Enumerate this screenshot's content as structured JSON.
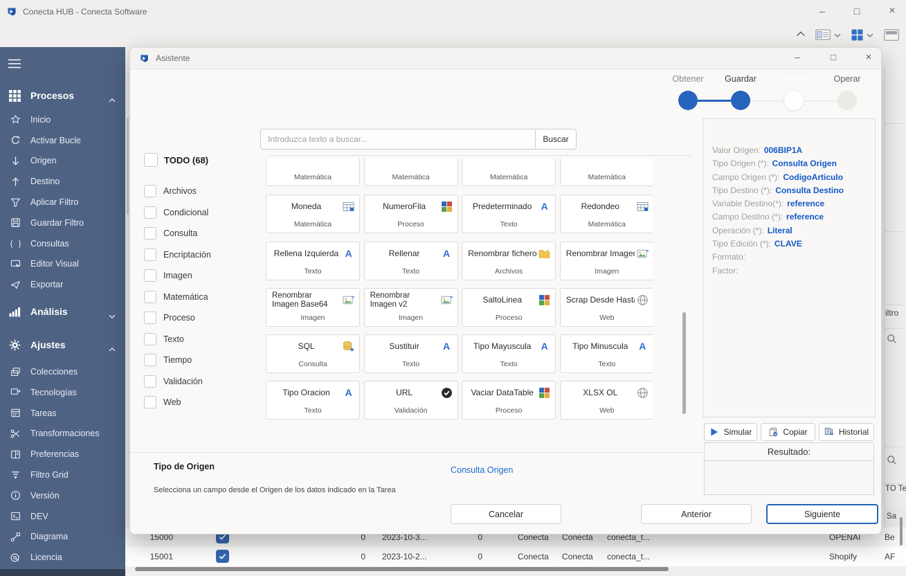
{
  "window": {
    "title": "Conecta HUB - Conecta Software",
    "controls": {
      "minimize": "–",
      "maximize": "□",
      "close": "×"
    }
  },
  "sidebar": {
    "sections": [
      {
        "label": "Procesos",
        "icon": "apps",
        "expanded": true,
        "items": [
          {
            "label": "Inicio",
            "icon": "star"
          },
          {
            "label": "Activar Bucle",
            "icon": "loop"
          },
          {
            "label": "Origen",
            "icon": "arrow-down"
          },
          {
            "label": "Destino",
            "icon": "arrow-up"
          },
          {
            "label": "Aplicar Filtro",
            "icon": "funnel"
          },
          {
            "label": "Guardar Filtro",
            "icon": "save"
          },
          {
            "label": "Consultas",
            "icon": "braces"
          },
          {
            "label": "Editor Visual",
            "icon": "visual-editor"
          },
          {
            "label": "Exportar",
            "icon": "export"
          }
        ]
      },
      {
        "label": "Análisis",
        "icon": "chart",
        "expanded": false,
        "items": []
      },
      {
        "label": "Ajustes",
        "icon": "gear",
        "expanded": true,
        "items": [
          {
            "label": "Colecciones",
            "icon": "collections"
          },
          {
            "label": "Tecnologías",
            "icon": "technologies"
          },
          {
            "label": "Tareas",
            "icon": "tasks"
          },
          {
            "label": "Transformaciones",
            "icon": "transformations"
          },
          {
            "label": "Preferencias",
            "icon": "preferences"
          },
          {
            "label": "Filtro Grid",
            "icon": "filter-grid"
          },
          {
            "label": "Versión",
            "icon": "info"
          },
          {
            "label": "DEV",
            "icon": "dev"
          },
          {
            "label": "Diagrama",
            "icon": "diagram"
          },
          {
            "label": "Licencia",
            "icon": "license"
          }
        ]
      }
    ]
  },
  "modal": {
    "title": "Asistente",
    "controls": {
      "minimize": "–",
      "maximize": "□",
      "close": "×"
    },
    "stepper": {
      "steps": [
        {
          "label": "Obtener",
          "status": "completed"
        },
        {
          "label": "Guardar",
          "status": "current"
        },
        {
          "label": "Operar",
          "status": "active"
        },
        {
          "label": "Operar",
          "status": "pending"
        }
      ]
    },
    "search": {
      "placeholder": "Introduzca texto a buscar...",
      "button_label": "Buscar"
    },
    "filters": {
      "all_label": "TODO (68)",
      "categories": [
        "Archivos",
        "Condicional",
        "Consulta",
        "Encriptación",
        "Imagen",
        "Matemática",
        "Proceso",
        "Texto",
        "Tiempo",
        "Validación",
        "Web"
      ]
    },
    "partial_row_categories": [
      "Matemática",
      "Matemática",
      "Matemática",
      "Matemática"
    ],
    "cards": [
      {
        "title": "Moneda",
        "category": "Matemática",
        "icon": "table"
      },
      {
        "title": "NumeroFila",
        "category": "Proceso",
        "icon": "grid"
      },
      {
        "title": "Predeterminado",
        "category": "Texto",
        "icon": "letter-a"
      },
      {
        "title": "Redondeo",
        "category": "Matemática",
        "icon": "table"
      },
      {
        "title": "Rellena Izquierda",
        "category": "Texto",
        "icon": "letter-a"
      },
      {
        "title": "Rellenar",
        "category": "Texto",
        "icon": "letter-a"
      },
      {
        "title": "Renombrar fichero",
        "category": "Archivos",
        "icon": "folder"
      },
      {
        "title": "Renombrar Imagen",
        "category": "Imagen",
        "icon": "image"
      },
      {
        "title": "Renombrar Imagen Base64",
        "category": "Imagen",
        "icon": "image"
      },
      {
        "title": "Renombrar Imagen v2",
        "category": "Imagen",
        "icon": "image"
      },
      {
        "title": "SaltoLinea",
        "category": "Proceso",
        "icon": "grid"
      },
      {
        "title": "Scrap Desde Hasta",
        "category": "Web",
        "icon": "globe"
      },
      {
        "title": "SQL",
        "category": "Consulta",
        "icon": "database"
      },
      {
        "title": "Sustituir",
        "category": "Texto",
        "icon": "letter-a"
      },
      {
        "title": "Tipo Mayuscula",
        "category": "Texto",
        "icon": "letter-a"
      },
      {
        "title": "Tipo Minuscula",
        "category": "Texto",
        "icon": "letter-a"
      },
      {
        "title": "Tipo Oracion",
        "category": "Texto",
        "icon": "letter-a"
      },
      {
        "title": "URL",
        "category": "Validación",
        "icon": "check-circle"
      },
      {
        "title": "Vaciar DataTable",
        "category": "Proceso",
        "icon": "grid"
      },
      {
        "title": "XLSX OL",
        "category": "Web",
        "icon": "globe"
      }
    ],
    "properties": [
      {
        "label": "Valor Origen:",
        "value": "006BIP1A"
      },
      {
        "label": "Tipo Origen (*):",
        "value": "Consulta Origen"
      },
      {
        "label": "Campo Origen (*):",
        "value": "CodigoArticulo"
      },
      {
        "label": "Tipo Destino (*):",
        "value": "Consulta Destino"
      },
      {
        "label": "Variable Destino(*):",
        "value": "reference"
      },
      {
        "label": "Campo Destino (*):",
        "value": "reference"
      },
      {
        "label": "Operación (*):",
        "value": "Literal"
      },
      {
        "label": "Tipo Edición (*):",
        "value": "CLAVE"
      },
      {
        "label": "Formato:",
        "value": ""
      },
      {
        "label": "Factor:",
        "value": ""
      }
    ],
    "actions": {
      "simulate_label": "Simular",
      "copy_label": "Copiar",
      "history_label": "Historial"
    },
    "result_label": "Resultado:",
    "footer": {
      "origin_type_label": "Tipo de Origen",
      "origin_type_value": "Consulta Origen",
      "description": "Selecciona un campo desde el Origen de los datos indicado en la Tarea",
      "cancel_label": "Cancelar",
      "previous_label": "Anterior",
      "next_label": "Siguiente"
    }
  },
  "background": {
    "table_rows": [
      {
        "id": "15000",
        "checked": true,
        "cells": [
          "0",
          "2023-10-3...",
          "0",
          "Conecta",
          "Conecta",
          "conecta_t...",
          "OPENAI"
        ],
        "edge": "Be"
      },
      {
        "id": "15001",
        "checked": true,
        "cells": [
          "0",
          "2023-10-2...",
          "0",
          "Conecta",
          "Conecta",
          "conecta_t...",
          "Shopify"
        ],
        "edge": "AF"
      }
    ],
    "right_strip": {
      "filter_partial": "iltro",
      "to_partial": "TO Te",
      "header_partial": "Sa"
    }
  },
  "colors": {
    "accent_blue": "#2563bd",
    "link_blue": "#1b6cd6",
    "value_blue": "#1458c8",
    "sidebar_blue": "#4e6284"
  }
}
